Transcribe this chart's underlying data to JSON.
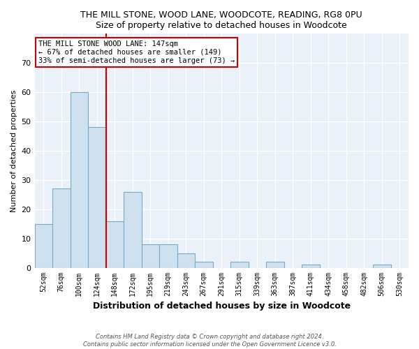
{
  "title": "THE MILL STONE, WOOD LANE, WOODCOTE, READING, RG8 0PU",
  "subtitle": "Size of property relative to detached houses in Woodcote",
  "xlabel": "Distribution of detached houses by size in Woodcote",
  "ylabel": "Number of detached properties",
  "bar_color": "#cfe0ef",
  "bar_edge_color": "#7aaac8",
  "background_color": "#eaf1f8",
  "tick_labels": [
    "52sqm",
    "76sqm",
    "100sqm",
    "124sqm",
    "148sqm",
    "172sqm",
    "195sqm",
    "219sqm",
    "243sqm",
    "267sqm",
    "291sqm",
    "315sqm",
    "339sqm",
    "363sqm",
    "387sqm",
    "411sqm",
    "434sqm",
    "458sqm",
    "482sqm",
    "506sqm",
    "530sqm"
  ],
  "bar_heights": [
    15,
    27,
    60,
    48,
    16,
    26,
    8,
    8,
    5,
    2,
    0,
    2,
    0,
    2,
    0,
    1,
    0,
    0,
    0,
    1,
    0
  ],
  "ylim": [
    0,
    80
  ],
  "yticks": [
    0,
    10,
    20,
    30,
    40,
    50,
    60,
    70
  ],
  "vline_x_idx": 4,
  "vline_color": "#cc0000",
  "annotation_line1": "THE MILL STONE WOOD LANE: 147sqm",
  "annotation_line2": "← 67% of detached houses are smaller (149)",
  "annotation_line3": "33% of semi-detached houses are larger (73) →",
  "footer_line1": "Contains HM Land Registry data © Crown copyright and database right 2024.",
  "footer_line2": "Contains public sector information licensed under the Open Government Licence v3.0."
}
